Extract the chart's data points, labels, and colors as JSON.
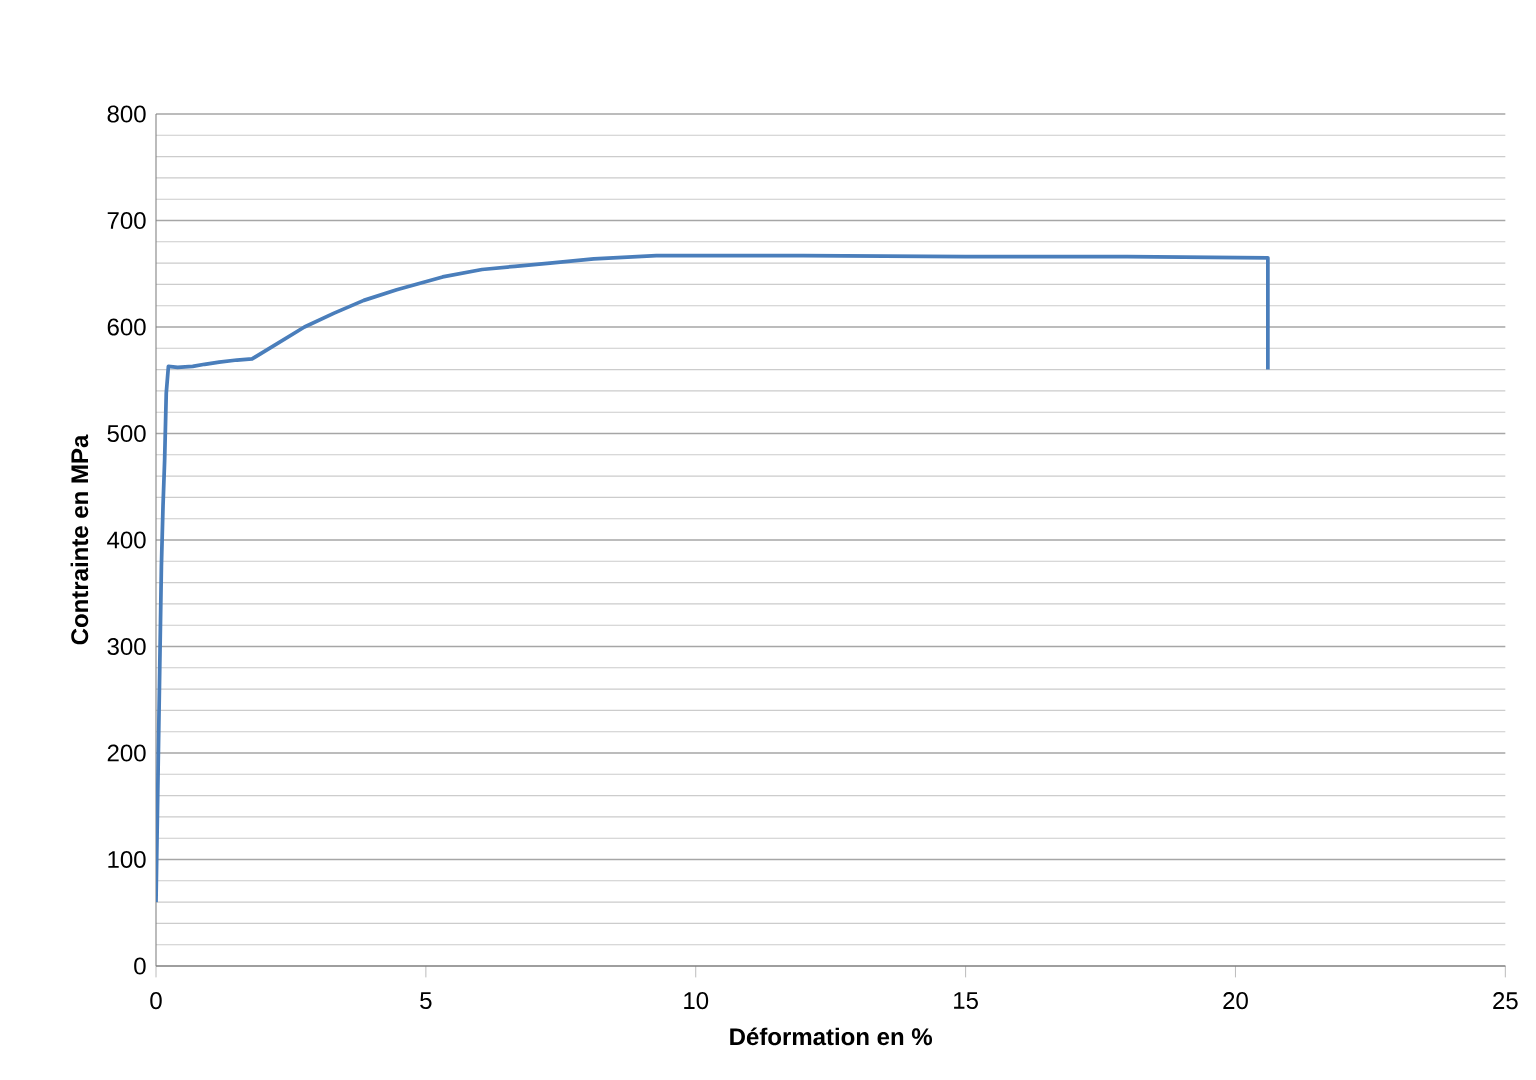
{
  "chart_data": {
    "type": "line",
    "xlabel": "Déformation en %",
    "ylabel": "Contrainte en MPa",
    "x": [
      0,
      0.07,
      0.1,
      0.13,
      0.16,
      0.19,
      0.23,
      0.4,
      0.68,
      0.9,
      1.17,
      1.5,
      1.78,
      2.2,
      2.75,
      3.3,
      3.85,
      4.46,
      5.31,
      6.04,
      6.65,
      7.3,
      8.11,
      9.27,
      12,
      15,
      18,
      20.6,
      20.6
    ],
    "series": [
      {
        "color": "#4a7ebb",
        "values": [
          60,
          282,
          375,
          432,
          475,
          538,
          563,
          562,
          563,
          565,
          567,
          569,
          570,
          583,
          600,
          613,
          625,
          635,
          647,
          654,
          657,
          660,
          664,
          667,
          667,
          666,
          666,
          665,
          560
        ]
      }
    ],
    "xlim": [
      0,
      25
    ],
    "ylim": [
      0,
      800
    ],
    "xticks": [
      0,
      5,
      10,
      15,
      20,
      25
    ],
    "yticks": [
      0,
      100,
      200,
      300,
      400,
      500,
      600,
      700,
      800
    ],
    "grid": "y",
    "marker": "none",
    "line_style": "solid"
  }
}
